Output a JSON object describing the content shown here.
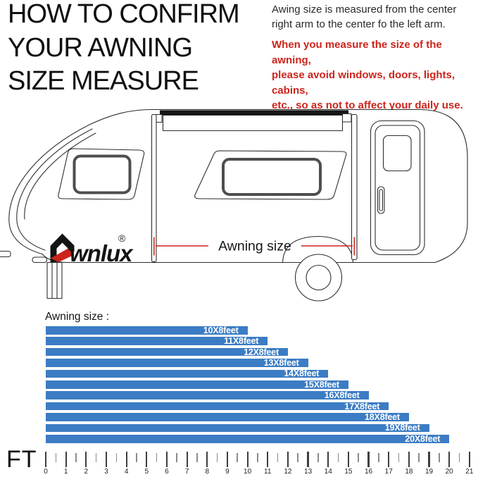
{
  "header": {
    "title_lines": [
      "HOW TO CONFIRM",
      "YOUR AWNING",
      "SIZE MEASURE"
    ],
    "note_lines": [
      "Awing size is measured from the center",
      "right arm to the center fo the left arm."
    ],
    "warning_lines": [
      "When you measure the size of the awning,",
      "please avoid windows, doors, lights, cabins,",
      "etc., so as not to affect your daily use."
    ],
    "warning_color": "#cc241c"
  },
  "diagram": {
    "brand": "wnlux",
    "registered_mark": "®",
    "annotation": "Awning size",
    "annotation_color": "#cc241c"
  },
  "chart_data": {
    "type": "bar",
    "orientation": "horizontal",
    "title": "Awning size :",
    "categories": [
      "10X8feet",
      "11X8feet",
      "12X8feet",
      "13X8feet",
      "14X8feet",
      "15X8feet",
      "16X8feet",
      "17X8feet",
      "18X8feet",
      "19X8feet",
      "20X8feet"
    ],
    "values": [
      10,
      11,
      12,
      13,
      14,
      15,
      16,
      17,
      18,
      19,
      20
    ],
    "unit_per_value": "feet",
    "bar_color": "#3b7cc4",
    "bar_label_color": "#ffffff",
    "xlabel": "FT",
    "axis": {
      "min": 0,
      "max": 21,
      "major_step": 1,
      "minor_step": 0.5,
      "tick_labels": [
        "0",
        "1",
        "2",
        "3",
        "4",
        "5",
        "6",
        "7",
        "8",
        "9",
        "10",
        "11",
        "12",
        "13",
        "14",
        "15",
        "16",
        "17",
        "18",
        "19",
        "20",
        "21"
      ]
    },
    "grid": false,
    "legend": false
  }
}
